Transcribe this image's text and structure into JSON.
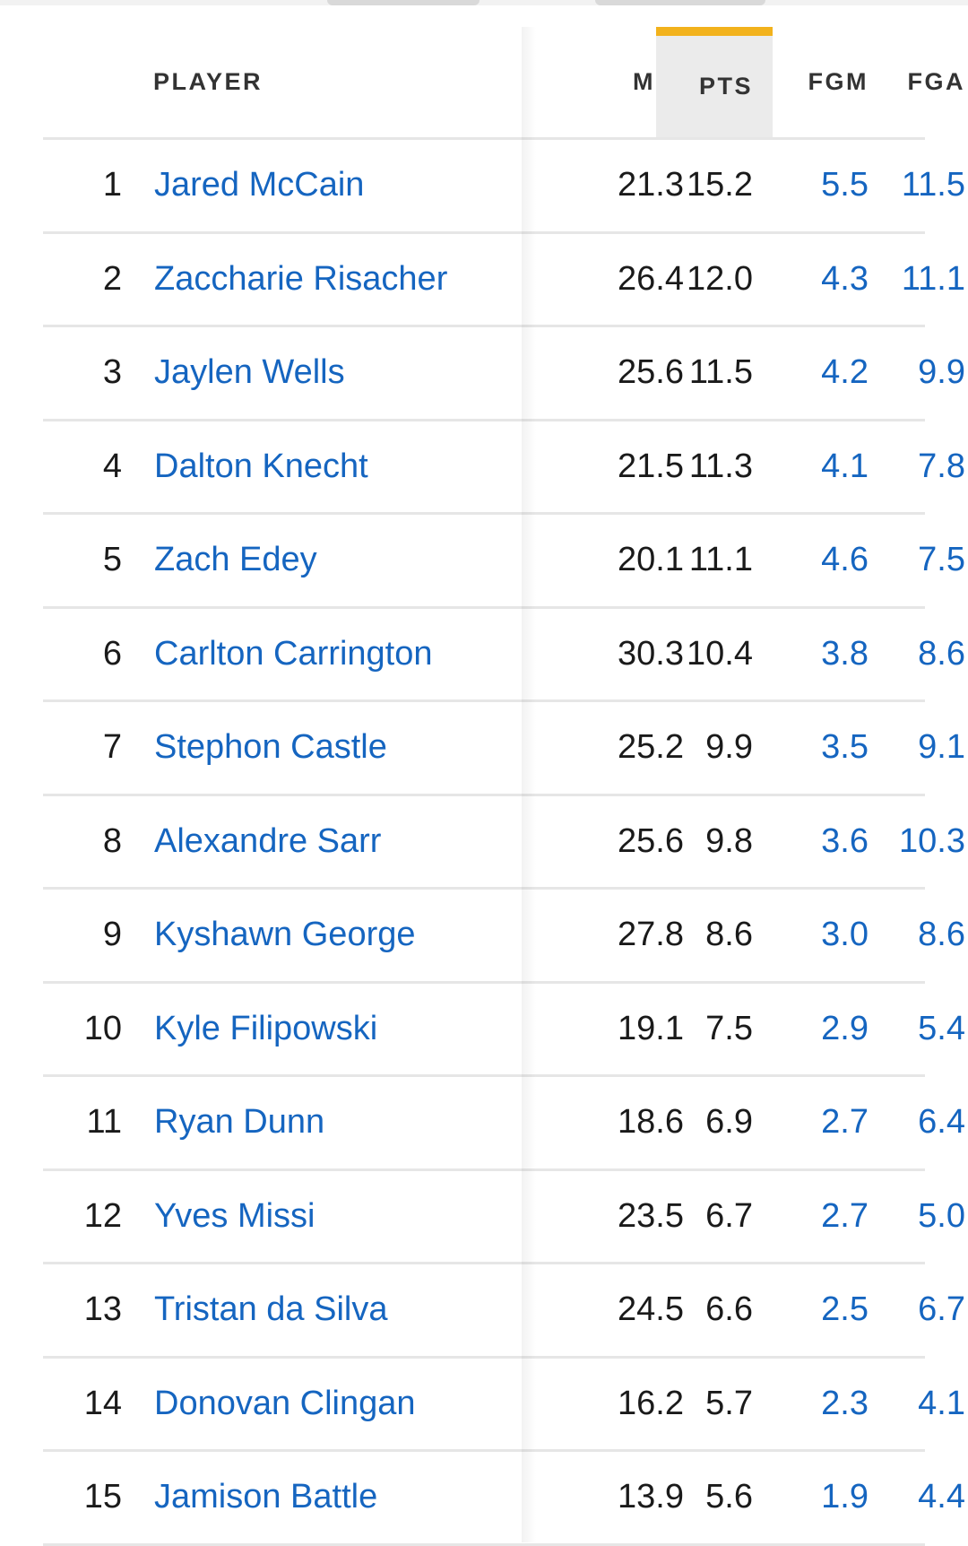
{
  "header": {
    "player": "PLAYER",
    "min": "MIN",
    "pts": "PTS",
    "fgm": "FGM",
    "fga": "FGA"
  },
  "sorted_column": "PTS",
  "colors": {
    "link": "#1565c0",
    "sort_accent": "#f2b21c",
    "sort_bg": "#ebebeb"
  },
  "rows": [
    {
      "rank": "1",
      "name": "Jared McCain",
      "min": "21.3",
      "pts": "15.2",
      "fgm": "5.5",
      "fga": "11.5"
    },
    {
      "rank": "2",
      "name": "Zaccharie Risacher",
      "min": "26.4",
      "pts": "12.0",
      "fgm": "4.3",
      "fga": "11.1"
    },
    {
      "rank": "3",
      "name": "Jaylen Wells",
      "min": "25.6",
      "pts": "11.5",
      "fgm": "4.2",
      "fga": "9.9"
    },
    {
      "rank": "4",
      "name": "Dalton Knecht",
      "min": "21.5",
      "pts": "11.3",
      "fgm": "4.1",
      "fga": "7.8"
    },
    {
      "rank": "5",
      "name": "Zach Edey",
      "min": "20.1",
      "pts": "11.1",
      "fgm": "4.6",
      "fga": "7.5"
    },
    {
      "rank": "6",
      "name": "Carlton Carrington",
      "min": "30.3",
      "pts": "10.4",
      "fgm": "3.8",
      "fga": "8.6"
    },
    {
      "rank": "7",
      "name": "Stephon Castle",
      "min": "25.2",
      "pts": "9.9",
      "fgm": "3.5",
      "fga": "9.1"
    },
    {
      "rank": "8",
      "name": "Alexandre Sarr",
      "min": "25.6",
      "pts": "9.8",
      "fgm": "3.6",
      "fga": "10.3"
    },
    {
      "rank": "9",
      "name": "Kyshawn George",
      "min": "27.8",
      "pts": "8.6",
      "fgm": "3.0",
      "fga": "8.6"
    },
    {
      "rank": "10",
      "name": "Kyle Filipowski",
      "min": "19.1",
      "pts": "7.5",
      "fgm": "2.9",
      "fga": "5.4"
    },
    {
      "rank": "11",
      "name": "Ryan Dunn",
      "min": "18.6",
      "pts": "6.9",
      "fgm": "2.7",
      "fga": "6.4"
    },
    {
      "rank": "12",
      "name": "Yves Missi",
      "min": "23.5",
      "pts": "6.7",
      "fgm": "2.7",
      "fga": "5.0"
    },
    {
      "rank": "13",
      "name": "Tristan da Silva",
      "min": "24.5",
      "pts": "6.6",
      "fgm": "2.5",
      "fga": "6.7"
    },
    {
      "rank": "14",
      "name": "Donovan Clingan",
      "min": "16.2",
      "pts": "5.7",
      "fgm": "2.3",
      "fga": "4.1"
    },
    {
      "rank": "15",
      "name": "Jamison Battle",
      "min": "13.9",
      "pts": "5.6",
      "fgm": "1.9",
      "fga": "4.4"
    }
  ]
}
